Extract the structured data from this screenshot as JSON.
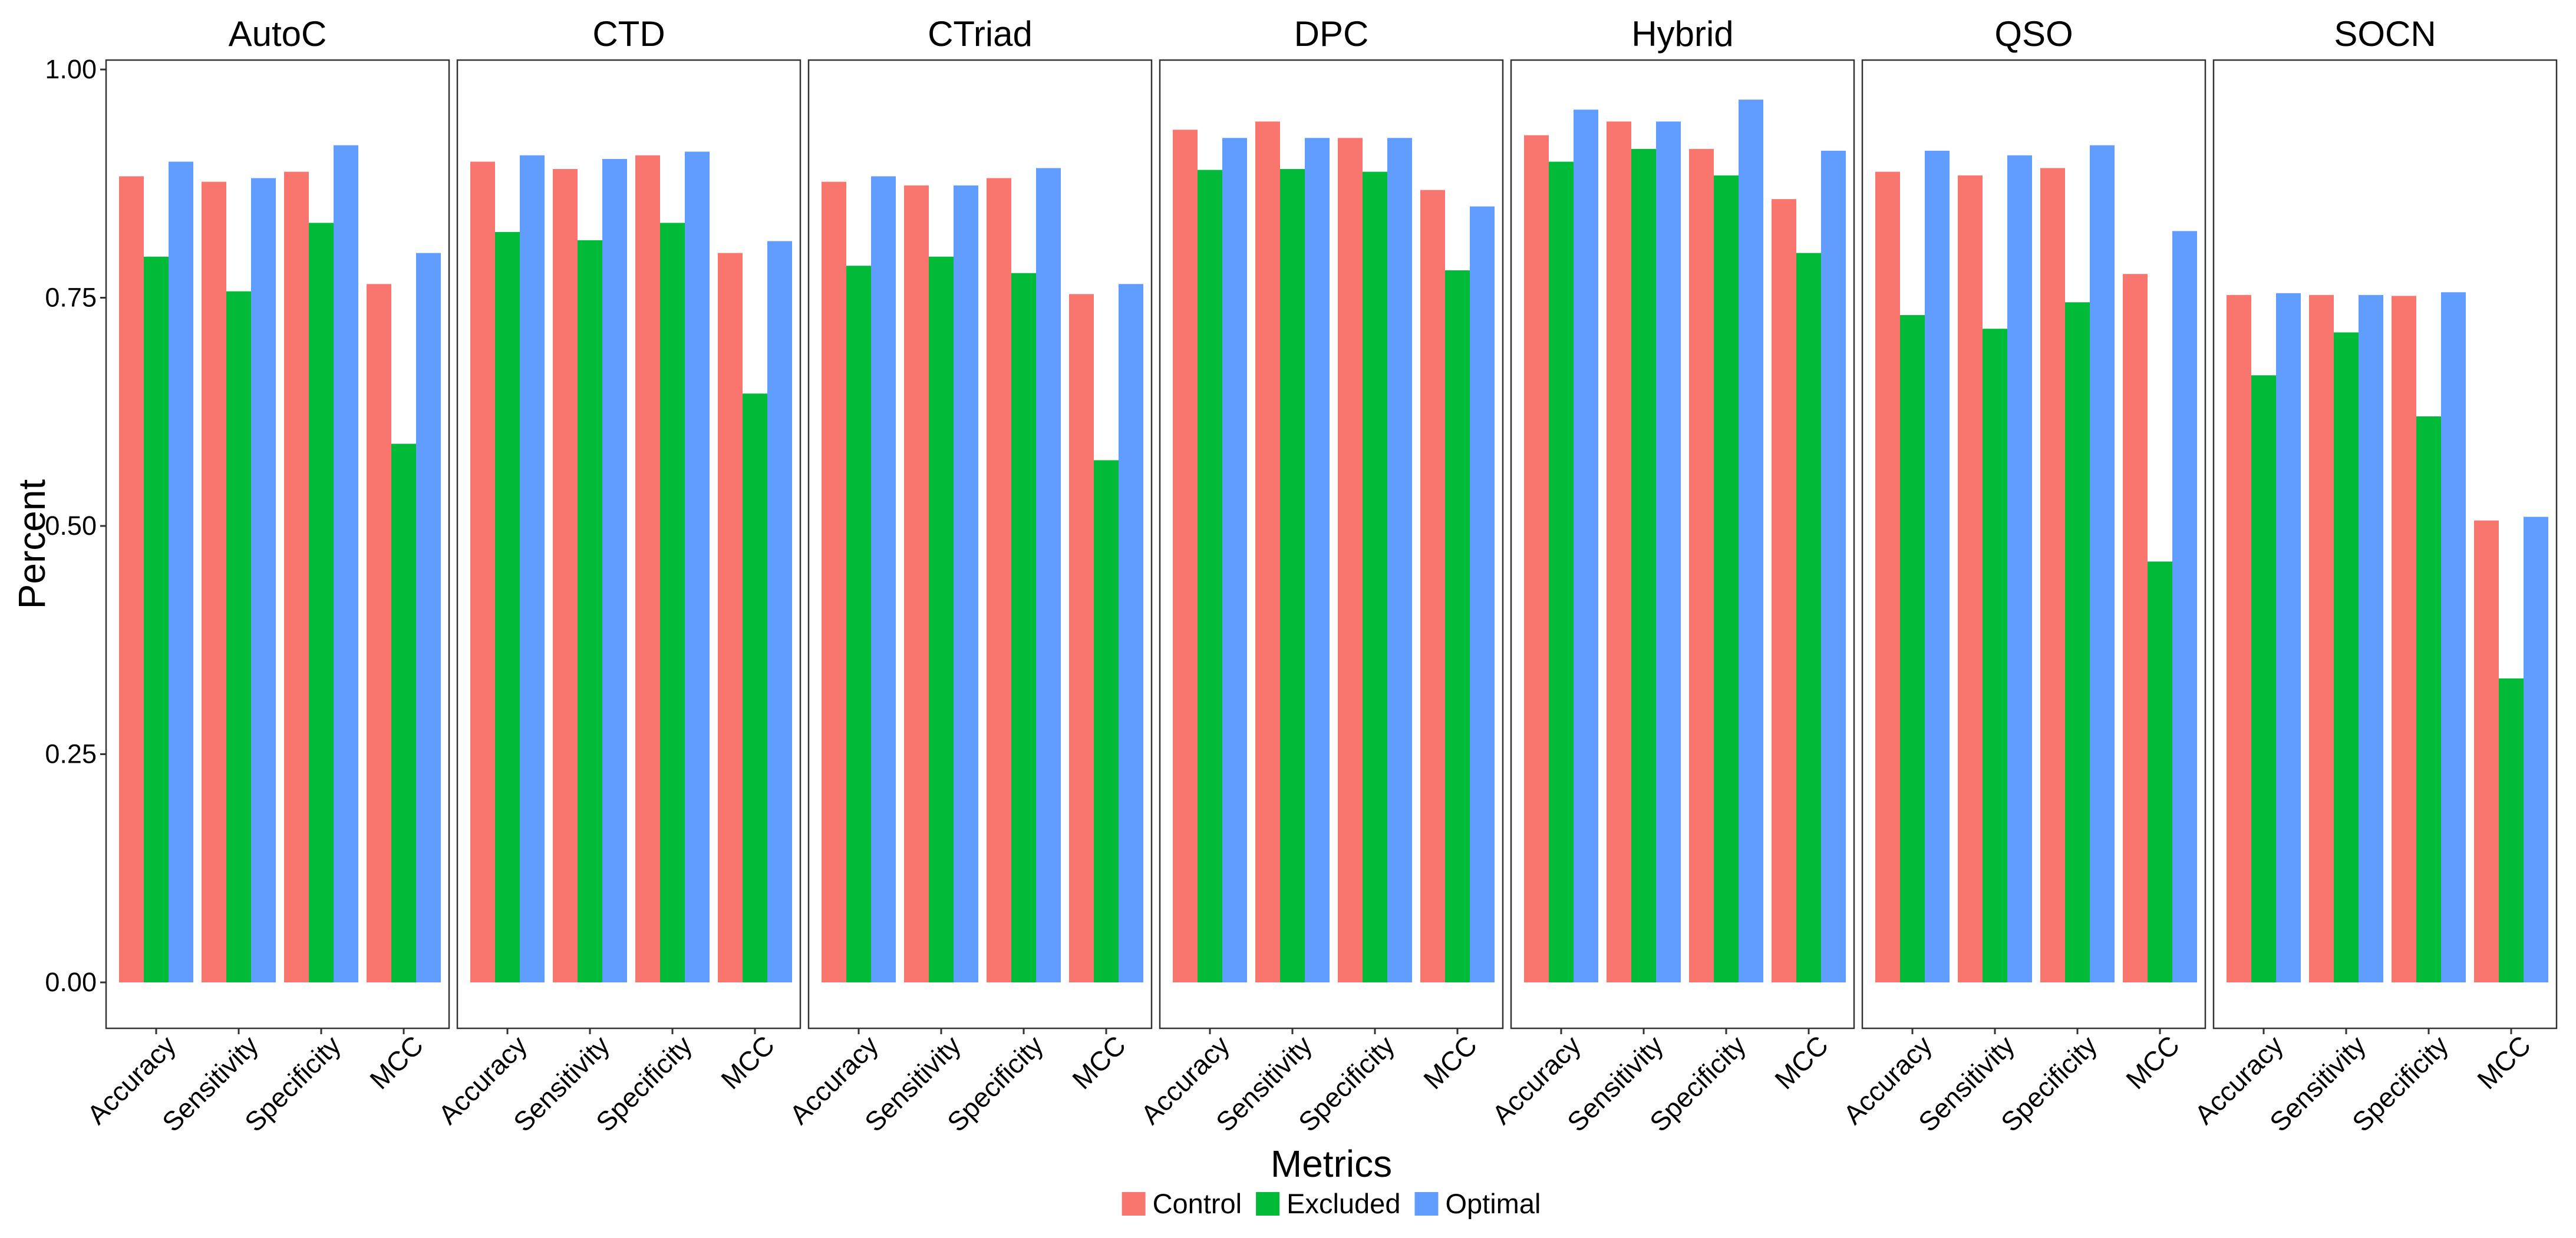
{
  "chart_data": {
    "type": "bar",
    "title": "",
    "xlabel": "Metrics",
    "ylabel": "Percent",
    "ylim": [
      -0.04,
      1.02
    ],
    "yticks": [
      0,
      0.25,
      0.5,
      0.75,
      1.0
    ],
    "ytick_labels": [
      "0.00",
      "0.25",
      "0.50",
      "0.75",
      "1.00"
    ],
    "grid": false,
    "legend_position": "bottom",
    "categories": [
      "Accuracy",
      "Sensitivity",
      "Specificity",
      "MCC"
    ],
    "series_names": [
      "Control",
      "Excluded",
      "Optimal"
    ],
    "series_colors": [
      "#F8766D",
      "#00BA38",
      "#619CFF"
    ],
    "facets": [
      {
        "name": "AutoC",
        "series": [
          {
            "name": "Control",
            "values": [
              0.883,
              0.877,
              0.888,
              0.765
            ]
          },
          {
            "name": "Excluded",
            "values": [
              0.795,
              0.757,
              0.832,
              0.59
            ]
          },
          {
            "name": "Optimal",
            "values": [
              0.899,
              0.881,
              0.917,
              0.799
            ]
          }
        ]
      },
      {
        "name": "CTD",
        "series": [
          {
            "name": "Control",
            "values": [
              0.899,
              0.891,
              0.906,
              0.799
            ]
          },
          {
            "name": "Excluded",
            "values": [
              0.822,
              0.813,
              0.832,
              0.645
            ]
          },
          {
            "name": "Optimal",
            "values": [
              0.906,
              0.902,
              0.91,
              0.812
            ]
          }
        ]
      },
      {
        "name": "CTriad",
        "series": [
          {
            "name": "Control",
            "values": [
              0.877,
              0.873,
              0.881,
              0.754
            ]
          },
          {
            "name": "Excluded",
            "values": [
              0.785,
              0.795,
              0.777,
              0.572
            ]
          },
          {
            "name": "Optimal",
            "values": [
              0.883,
              0.873,
              0.892,
              0.765
            ]
          }
        ]
      },
      {
        "name": "DPC",
        "series": [
          {
            "name": "Control",
            "values": [
              0.934,
              0.943,
              0.925,
              0.868
            ]
          },
          {
            "name": "Excluded",
            "values": [
              0.89,
              0.891,
              0.888,
              0.78
            ]
          },
          {
            "name": "Optimal",
            "values": [
              0.925,
              0.925,
              0.925,
              0.85
            ]
          }
        ]
      },
      {
        "name": "Hybrid",
        "series": [
          {
            "name": "Control",
            "values": [
              0.928,
              0.943,
              0.913,
              0.858
            ]
          },
          {
            "name": "Excluded",
            "values": [
              0.899,
              0.913,
              0.884,
              0.799
            ]
          },
          {
            "name": "Optimal",
            "values": [
              0.956,
              0.943,
              0.967,
              0.911
            ]
          }
        ]
      },
      {
        "name": "QSO",
        "series": [
          {
            "name": "Control",
            "values": [
              0.888,
              0.884,
              0.892,
              0.776
            ]
          },
          {
            "name": "Excluded",
            "values": [
              0.731,
              0.716,
              0.745,
              0.461
            ]
          },
          {
            "name": "Optimal",
            "values": [
              0.911,
              0.906,
              0.917,
              0.823
            ]
          }
        ]
      },
      {
        "name": "SOCN",
        "series": [
          {
            "name": "Control",
            "values": [
              0.753,
              0.753,
              0.752,
              0.506
            ]
          },
          {
            "name": "Excluded",
            "values": [
              0.665,
              0.712,
              0.62,
              0.333
            ]
          },
          {
            "name": "Optimal",
            "values": [
              0.755,
              0.753,
              0.756,
              0.51
            ]
          }
        ]
      }
    ]
  }
}
